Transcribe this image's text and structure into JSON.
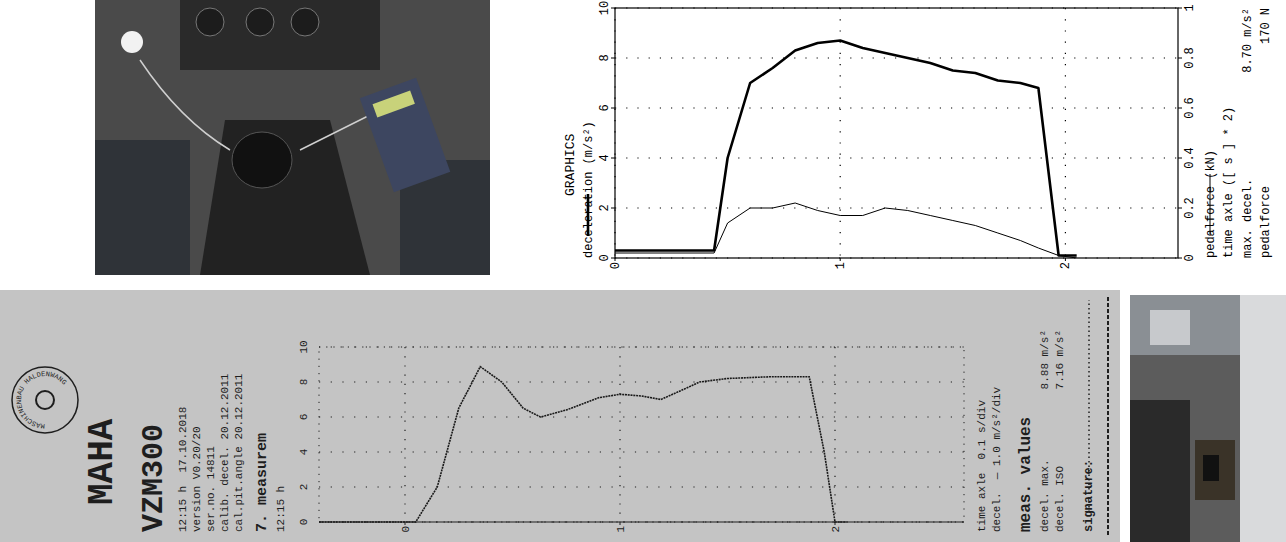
{
  "chart_data": [
    {
      "type": "line",
      "title": "GRAPHICS",
      "y_label": "deceleration (m/s²)",
      "y2_label": "pedalforce (kN)",
      "x_label": "time axle ([ s ] * 2)",
      "x": [
        0,
        0.2,
        0.44,
        0.5,
        0.6,
        0.7,
        0.8,
        0.9,
        1.0,
        1.1,
        1.2,
        1.3,
        1.4,
        1.5,
        1.6,
        1.7,
        1.8,
        1.88,
        1.97,
        2.05
      ],
      "series": [
        {
          "color": "#000000",
          "line_style": "thick",
          "values": [
            0.3,
            0.3,
            0.3,
            4.0,
            7.0,
            7.6,
            8.3,
            8.6,
            8.7,
            8.4,
            8.2,
            8.0,
            7.8,
            7.5,
            7.4,
            7.1,
            7.0,
            6.8,
            0.1,
            0.1
          ]
        },
        {
          "color": "#000000",
          "line_style": "thin",
          "axis": "y2",
          "values": [
            0.02,
            0.02,
            0.02,
            0.14,
            0.2,
            0.2,
            0.22,
            0.19,
            0.17,
            0.17,
            0.2,
            0.19,
            0.17,
            0.15,
            0.13,
            0.1,
            0.07,
            0.04,
            0.01,
            0.0
          ]
        }
      ],
      "xlim": [
        0,
        2.5
      ],
      "xticks": [
        0,
        1,
        2
      ],
      "ylim": [
        0,
        10
      ],
      "yticks": [
        0,
        2,
        4,
        6,
        8,
        10
      ],
      "y2lim": [
        0,
        1
      ],
      "y2ticks": [
        0,
        0.2,
        0.4,
        0.6,
        0.8,
        1
      ],
      "grid": true,
      "annotations": [
        {
          "label": "max. decel.",
          "text": "8.70 m/s²"
        },
        {
          "label": "pedalforce",
          "text": "170 N"
        }
      ]
    },
    {
      "type": "line",
      "brand": "MAHA",
      "logo_text": "MASCHINENBAU HALDENWANG",
      "model": "VZM300",
      "header_lines": [
        "12:15 h  17.10.2018",
        "version V0.20/20",
        "ser.no. 14811",
        "calib. decel. 20.12.2011",
        "cal.pit.angle 20.12.2011"
      ],
      "title": "7. measurem",
      "subtitle": "12:15 h",
      "x_label": "time axle  0.1 s/div",
      "y_label": "decel.  — 1.0 m/s²/div",
      "values_title": "meas. values",
      "values_table": [
        {
          "label": "decel. max.",
          "value": "8.88 m/s²"
        },
        {
          "label": "decel. ISO",
          "value": "7.16 m/s²"
        }
      ],
      "signature": "signature:",
      "x": [
        -0.4,
        0.05,
        0.15,
        0.25,
        0.35,
        0.45,
        0.55,
        0.63,
        0.75,
        0.9,
        1.0,
        1.1,
        1.19,
        1.3,
        1.37,
        1.5,
        1.7,
        1.88,
        1.95,
        2.0,
        2.05
      ],
      "series": [
        {
          "color": "#1a1a1a",
          "line_style": "solid",
          "values": [
            0,
            0,
            2.0,
            6.5,
            8.88,
            8.0,
            6.5,
            6.0,
            6.4,
            7.1,
            7.3,
            7.2,
            7.0,
            7.6,
            8.0,
            8.2,
            8.3,
            8.3,
            4.0,
            0,
            0
          ]
        }
      ],
      "xlim": [
        -0.4,
        2.6
      ],
      "xticks": [
        0,
        1,
        2
      ],
      "ylim": [
        0,
        10
      ],
      "yticks": [
        0,
        2,
        4,
        6,
        8,
        10
      ],
      "grid": true
    }
  ]
}
